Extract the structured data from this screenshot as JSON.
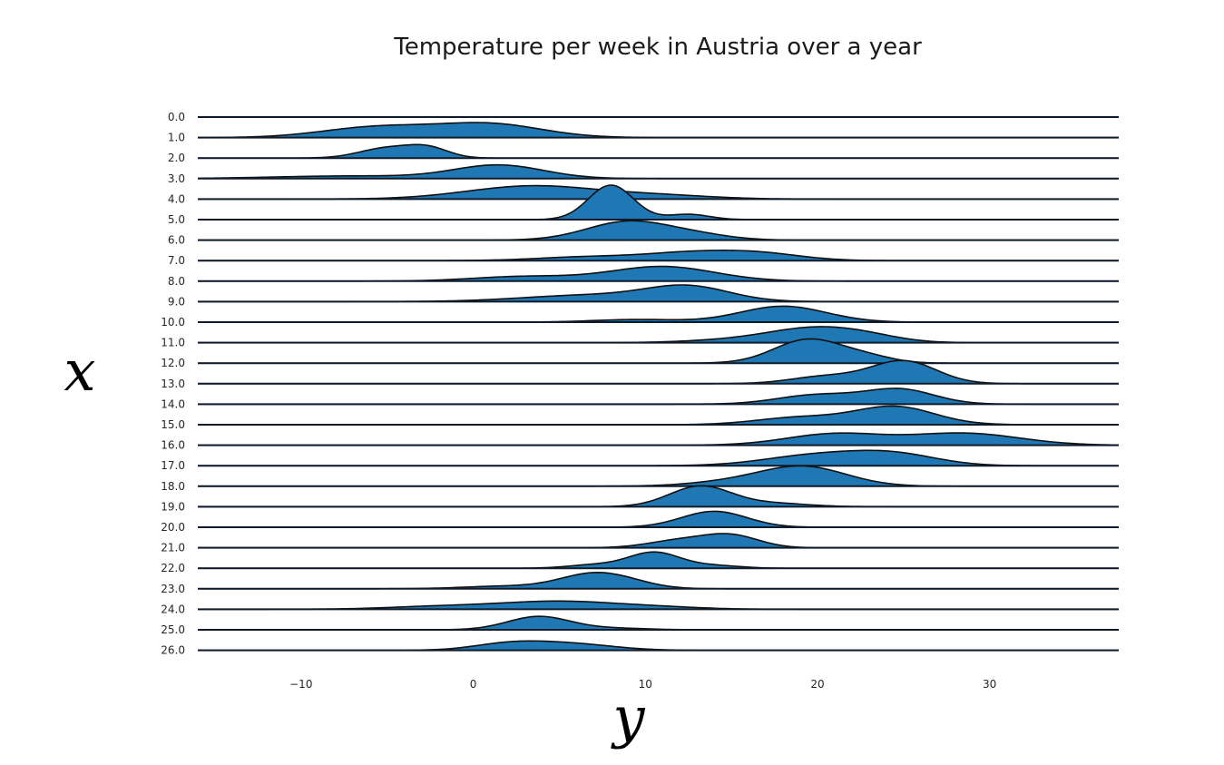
{
  "chart_data": {
    "type": "area",
    "style": "ridgeline",
    "title": "Temperature per week in Austria over a year",
    "xlabel": "y",
    "ylabel": "x",
    "xlim": [
      -16,
      37.5
    ],
    "xticks": [
      -10,
      0,
      10,
      20,
      30
    ],
    "xtick_labels": [
      "−10",
      "0",
      "10",
      "20",
      "30"
    ],
    "fill_color": "#1f77b4",
    "line_color": "#111111",
    "grid": false,
    "weeks": [
      "0.0",
      "1.0",
      "2.0",
      "3.0",
      "4.0",
      "5.0",
      "6.0",
      "7.0",
      "8.0",
      "9.0",
      "10.0",
      "11.0",
      "12.0",
      "13.0",
      "14.0",
      "15.0",
      "16.0",
      "17.0",
      "18.0",
      "19.0",
      "20.0",
      "21.0",
      "22.0",
      "23.0",
      "24.0",
      "25.0",
      "26.0"
    ],
    "series": [
      {
        "week": "0.0",
        "peaks": []
      },
      {
        "week": "1.0",
        "peaks": [
          {
            "mu": -5.5,
            "sigma": 3.2,
            "a": 0.8
          },
          {
            "mu": 1.0,
            "sigma": 3.0,
            "a": 1.0
          }
        ]
      },
      {
        "week": "2.0",
        "peaks": [
          {
            "mu": -5.0,
            "sigma": 1.6,
            "a": 0.75
          },
          {
            "mu": -2.6,
            "sigma": 1.2,
            "a": 0.7
          }
        ]
      },
      {
        "week": "3.0",
        "peaks": [
          {
            "mu": -7.0,
            "sigma": 4.5,
            "a": 0.2
          },
          {
            "mu": 1.5,
            "sigma": 2.6,
            "a": 1.0
          }
        ]
      },
      {
        "week": "4.0",
        "peaks": [
          {
            "mu": 3.5,
            "sigma": 3.8,
            "a": 1.0
          },
          {
            "mu": 11.0,
            "sigma": 3.0,
            "a": 0.25
          }
        ]
      },
      {
        "week": "5.0",
        "peaks": [
          {
            "mu": 8.0,
            "sigma": 1.3,
            "a": 2.6
          },
          {
            "mu": 12.5,
            "sigma": 1.2,
            "a": 0.4
          }
        ]
      },
      {
        "week": "6.0",
        "peaks": [
          {
            "mu": 9.0,
            "sigma": 2.4,
            "a": 1.4
          },
          {
            "mu": 13.0,
            "sigma": 2.0,
            "a": 0.35
          }
        ]
      },
      {
        "week": "7.0",
        "peaks": [
          {
            "mu": 7.0,
            "sigma": 3.0,
            "a": 0.3
          },
          {
            "mu": 12.5,
            "sigma": 2.5,
            "a": 0.5
          },
          {
            "mu": 16.5,
            "sigma": 2.5,
            "a": 0.55
          }
        ]
      },
      {
        "week": "8.0",
        "peaks": [
          {
            "mu": 3.0,
            "sigma": 3.0,
            "a": 0.35
          },
          {
            "mu": 11.0,
            "sigma": 3.0,
            "a": 1.1
          }
        ]
      },
      {
        "week": "9.0",
        "peaks": [
          {
            "mu": 7.0,
            "sigma": 4.0,
            "a": 0.5
          },
          {
            "mu": 12.5,
            "sigma": 2.4,
            "a": 1.05
          }
        ]
      },
      {
        "week": "10.0",
        "peaks": [
          {
            "mu": 9.5,
            "sigma": 2.5,
            "a": 0.2
          },
          {
            "mu": 18.0,
            "sigma": 2.5,
            "a": 1.2
          }
        ]
      },
      {
        "week": "11.0",
        "peaks": [
          {
            "mu": 16.0,
            "sigma": 3.0,
            "a": 0.25
          },
          {
            "mu": 20.0,
            "sigma": 2.6,
            "a": 1.0
          },
          {
            "mu": 23.0,
            "sigma": 2.0,
            "a": 0.3
          }
        ]
      },
      {
        "week": "12.0",
        "peaks": [
          {
            "mu": 19.5,
            "sigma": 2.0,
            "a": 1.8
          },
          {
            "mu": 23.0,
            "sigma": 1.5,
            "a": 0.4
          }
        ]
      },
      {
        "week": "13.0",
        "peaks": [
          {
            "mu": 20.5,
            "sigma": 2.0,
            "a": 0.55
          },
          {
            "mu": 25.0,
            "sigma": 1.9,
            "a": 1.7
          }
        ]
      },
      {
        "week": "14.0",
        "peaks": [
          {
            "mu": 20.0,
            "sigma": 2.3,
            "a": 0.7
          },
          {
            "mu": 24.8,
            "sigma": 2.0,
            "a": 1.1
          }
        ]
      },
      {
        "week": "15.0",
        "peaks": [
          {
            "mu": 19.0,
            "sigma": 2.5,
            "a": 0.55
          },
          {
            "mu": 24.5,
            "sigma": 2.3,
            "a": 1.35
          }
        ]
      },
      {
        "week": "16.0",
        "peaks": [
          {
            "mu": 21.0,
            "sigma": 2.8,
            "a": 0.85
          },
          {
            "mu": 28.5,
            "sigma": 3.2,
            "a": 0.9
          }
        ]
      },
      {
        "week": "17.0",
        "peaks": [
          {
            "mu": 20.0,
            "sigma": 3.0,
            "a": 0.8
          },
          {
            "mu": 24.5,
            "sigma": 2.5,
            "a": 0.8
          }
        ]
      },
      {
        "week": "18.0",
        "peaks": [
          {
            "mu": 15.0,
            "sigma": 2.5,
            "a": 0.3
          },
          {
            "mu": 19.2,
            "sigma": 2.5,
            "a": 1.45
          }
        ]
      },
      {
        "week": "19.0",
        "peaks": [
          {
            "mu": 13.2,
            "sigma": 1.8,
            "a": 1.55
          },
          {
            "mu": 17.5,
            "sigma": 2.0,
            "a": 0.25
          }
        ]
      },
      {
        "week": "20.0",
        "peaks": [
          {
            "mu": 14.0,
            "sigma": 1.9,
            "a": 1.2
          }
        ]
      },
      {
        "week": "21.0",
        "peaks": [
          {
            "mu": 12.0,
            "sigma": 1.8,
            "a": 0.55
          },
          {
            "mu": 15.0,
            "sigma": 1.6,
            "a": 0.9
          }
        ]
      },
      {
        "week": "22.0",
        "peaks": [
          {
            "mu": 7.0,
            "sigma": 1.5,
            "a": 0.25
          },
          {
            "mu": 10.5,
            "sigma": 1.5,
            "a": 1.2
          },
          {
            "mu": 14.0,
            "sigma": 1.5,
            "a": 0.2
          }
        ]
      },
      {
        "week": "23.0",
        "peaks": [
          {
            "mu": 2.0,
            "sigma": 2.5,
            "a": 0.2
          },
          {
            "mu": 6.5,
            "sigma": 1.8,
            "a": 0.8
          },
          {
            "mu": 8.5,
            "sigma": 1.8,
            "a": 0.6
          }
        ]
      },
      {
        "week": "24.0",
        "peaks": [
          {
            "mu": -2.0,
            "sigma": 3.0,
            "a": 0.2
          },
          {
            "mu": 5.0,
            "sigma": 3.5,
            "a": 0.6
          },
          {
            "mu": 11.0,
            "sigma": 2.5,
            "a": 0.12
          }
        ]
      },
      {
        "week": "25.0",
        "peaks": [
          {
            "mu": 3.8,
            "sigma": 1.8,
            "a": 1.0
          },
          {
            "mu": 8.0,
            "sigma": 2.0,
            "a": 0.12
          }
        ]
      },
      {
        "week": "26.0",
        "peaks": [
          {
            "mu": 2.0,
            "sigma": 2.0,
            "a": 0.45
          },
          {
            "mu": 5.5,
            "sigma": 2.5,
            "a": 0.5
          }
        ]
      }
    ]
  }
}
